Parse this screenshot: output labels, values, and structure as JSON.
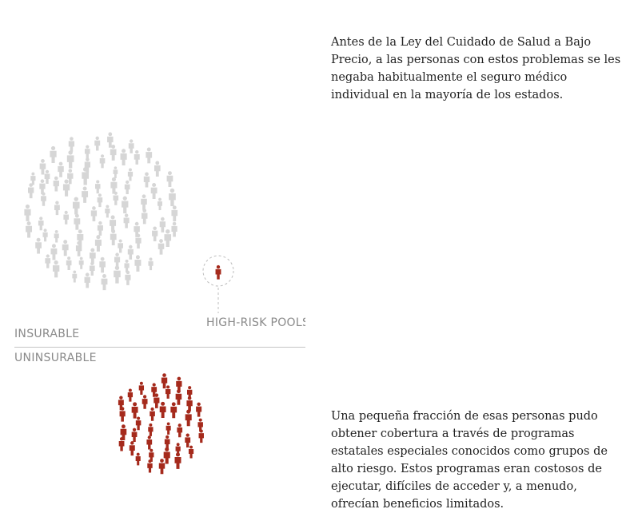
{
  "colors": {
    "gray_person": "#d6d6d6",
    "red_person": "#a52a1c",
    "divider": "#c4c4c4",
    "label": "#8a8a8a",
    "text": "#222222"
  },
  "labels": {
    "insurable": "INSURABLE",
    "uninsurable": "UNINSURABLE",
    "high_risk_pools": "HIGH-RISK POOLS"
  },
  "text": {
    "paragraph_1": "Antes de la Ley del Cuidado de Salud a Bajo Precio, a las personas con estos problemas se les negaba habitualmente el seguro médico individual en la mayoría de los estados.",
    "paragraph_2": "Una pequeña fracción de esas personas pudo obtener cobertura a través de programas estatales especiales conocidos como grupos de alto riesgo. Estos programas eran costosos de ejecutar, difíciles de acceder y, a menudo, ofrecían beneficios limitados."
  },
  "icons": {
    "insurable_person": "person-icon",
    "uninsurable_person": "person-icon",
    "pool_person": "person-icon"
  }
}
